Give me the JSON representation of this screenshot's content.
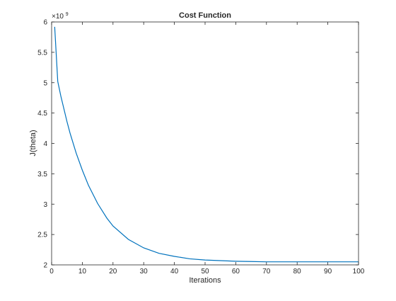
{
  "chart_data": {
    "type": "line",
    "title": "Cost Function",
    "xlabel": "Iterations",
    "ylabel": "J(theta)",
    "xlim": [
      0,
      100
    ],
    "ylim": [
      2.0,
      6.0
    ],
    "y_scale_exponent_label": "×10",
    "y_scale_exponent": "9",
    "xticks": [
      "0",
      "10",
      "20",
      "30",
      "40",
      "50",
      "60",
      "70",
      "80",
      "90",
      "100"
    ],
    "yticks": [
      "2",
      "2.5",
      "3",
      "3.5",
      "4",
      "4.5",
      "5",
      "5.5",
      "6"
    ],
    "grid": false,
    "series": [
      {
        "color": "#0072BD",
        "x": [
          1,
          2,
          3,
          4,
          5,
          6,
          8,
          10,
          12,
          15,
          18,
          20,
          25,
          30,
          35,
          40,
          45,
          50,
          55,
          60,
          65,
          70,
          75,
          80,
          85,
          90,
          95,
          100
        ],
        "y": [
          5.92,
          5.02,
          4.78,
          4.57,
          4.36,
          4.17,
          3.84,
          3.56,
          3.31,
          3.01,
          2.77,
          2.64,
          2.42,
          2.28,
          2.19,
          2.14,
          2.1,
          2.08,
          2.07,
          2.06,
          2.055,
          2.05,
          2.05,
          2.05,
          2.05,
          2.05,
          2.05,
          2.05
        ]
      }
    ]
  }
}
